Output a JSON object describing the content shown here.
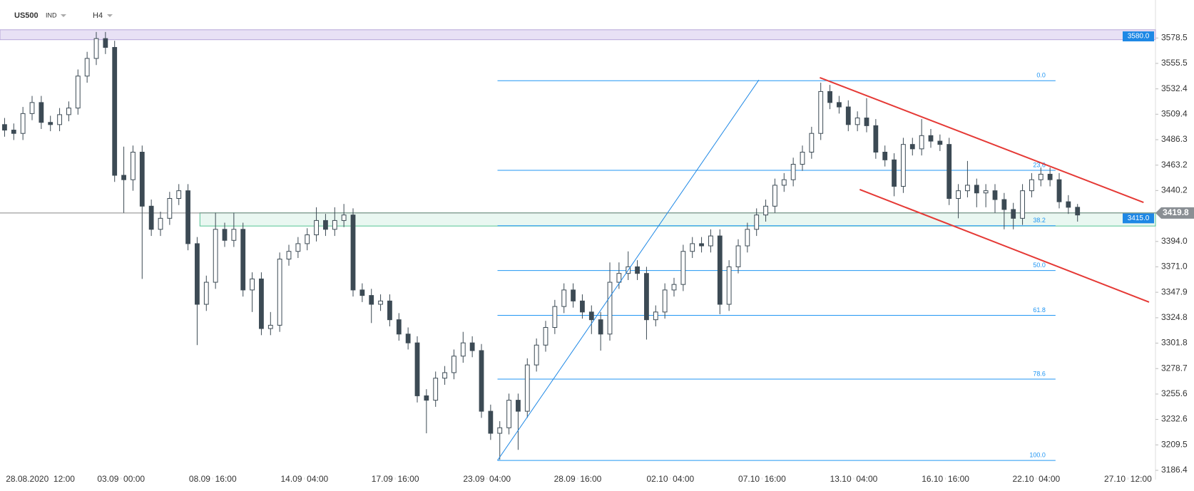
{
  "chart_data": {
    "type": "candlestick",
    "title": "US500",
    "instrument_class": "IND",
    "timeframe": "H4",
    "xlim": [
      -0.5,
      125.5
    ],
    "ylim": [
      3178,
      3613
    ],
    "xticks": [
      {
        "value": 3.9,
        "label": "28.08.2020  12:00"
      },
      {
        "value": 12.7,
        "label": "03.09  00:00"
      },
      {
        "value": 22.7,
        "label": "08.09  16:00"
      },
      {
        "value": 32.7,
        "label": "14.09  04:00"
      },
      {
        "value": 42.6,
        "label": "17.09  16:00"
      },
      {
        "value": 52.6,
        "label": "23.09  04:00"
      },
      {
        "value": 62.5,
        "label": "28.09  16:00"
      },
      {
        "value": 72.6,
        "label": "02.10  04:00"
      },
      {
        "value": 82.6,
        "label": "07.10  16:00"
      },
      {
        "value": 92.6,
        "label": "13.10  04:00"
      },
      {
        "value": 102.6,
        "label": "16.10  16:00"
      },
      {
        "value": 112.5,
        "label": "22.10  04:00"
      },
      {
        "value": 122.5,
        "label": "27.10  12:00"
      }
    ],
    "yticks": [
      3186.4,
      3209.5,
      3232.6,
      3255.6,
      3278.7,
      3301.8,
      3324.8,
      3347.9,
      {
        "value": 3371,
        "label": "3371.0"
      },
      {
        "value": 3394,
        "label": "3394.0"
      },
      3440.2,
      3463.2,
      3486.3,
      3509.4,
      3532.4,
      3555.5,
      3578.5
    ],
    "up_color": "#ffffff",
    "down_color": "#3c4a54",
    "wick_color": "#3c4a54",
    "open": [
      3500,
      3495,
      3492,
      3510,
      3520,
      3502,
      3500,
      3509,
      3515,
      3544,
      3560,
      3578,
      3570,
      3454,
      3450,
      3475,
      3426,
      3405,
      3415,
      3433,
      3440,
      3392,
      3337,
      3357,
      3405,
      3395,
      3405,
      3350,
      3360,
      3315,
      3318,
      3378,
      3385,
      3392,
      3400,
      3413,
      3405,
      3413,
      3418,
      3350,
      3345,
      3337,
      3340,
      3323,
      3310,
      3302,
      3254,
      3250,
      3270,
      3275,
      3290,
      3302,
      3295,
      3240,
      3220,
      3225,
      3250,
      3240,
      3282,
      3300,
      3316,
      3335,
      3350,
      3340,
      3330,
      3323,
      3310,
      3357,
      3365,
      3371,
      3365,
      3323,
      3330,
      3350,
      3355,
      3385,
      3392,
      3390,
      3399,
      3337,
      3371,
      3390,
      3405,
      3418,
      3426,
      3445,
      3450,
      3464,
      3475,
      3492,
      3530,
      3520,
      3516,
      3500,
      3506,
      3499,
      3475,
      3468,
      3444,
      3482,
      3478,
      3490,
      3485,
      3482,
      3433,
      3440,
      3445,
      3438,
      3440,
      3432,
      3423,
      3415,
      3440,
      3450,
      3455,
      3450,
      3430,
      3425
    ],
    "high": [
      3506,
      3501,
      3516,
      3526,
      3526,
      3508,
      3515,
      3521,
      3550,
      3566,
      3584,
      3584,
      3576,
      3480,
      3481,
      3481,
      3432,
      3421,
      3439,
      3446,
      3446,
      3398,
      3363,
      3420,
      3411,
      3420,
      3411,
      3366,
      3366,
      3330,
      3384,
      3391,
      3398,
      3406,
      3425,
      3419,
      3425,
      3428,
      3424,
      3356,
      3351,
      3346,
      3346,
      3329,
      3316,
      3308,
      3260,
      3276,
      3281,
      3296,
      3312,
      3308,
      3301,
      3246,
      3231,
      3256,
      3256,
      3288,
      3306,
      3322,
      3341,
      3356,
      3356,
      3346,
      3336,
      3330,
      3375,
      3375,
      3385,
      3377,
      3371,
      3336,
      3356,
      3361,
      3391,
      3398,
      3398,
      3405,
      3405,
      3377,
      3396,
      3411,
      3424,
      3432,
      3451,
      3456,
      3470,
      3481,
      3498,
      3538,
      3536,
      3526,
      3522,
      3512,
      3524,
      3505,
      3481,
      3474,
      3488,
      3488,
      3505,
      3496,
      3491,
      3488,
      3446,
      3467,
      3451,
      3446,
      3446,
      3438,
      3429,
      3446,
      3456,
      3461,
      3461,
      3456,
      3436,
      3428
    ],
    "low": [
      3489,
      3486,
      3486,
      3504,
      3496,
      3494,
      3494,
      3503,
      3509,
      3538,
      3554,
      3564,
      3448,
      3420,
      3440,
      3360,
      3399,
      3399,
      3409,
      3427,
      3386,
      3300,
      3331,
      3351,
      3389,
      3389,
      3344,
      3330,
      3309,
      3309,
      3312,
      3372,
      3379,
      3386,
      3394,
      3399,
      3399,
      3407,
      3344,
      3339,
      3320,
      3331,
      3317,
      3304,
      3296,
      3248,
      3220,
      3244,
      3264,
      3269,
      3284,
      3289,
      3234,
      3214,
      3196,
      3219,
      3205,
      3234,
      3276,
      3294,
      3310,
      3329,
      3334,
      3324,
      3310,
      3295,
      3304,
      3351,
      3359,
      3359,
      3305,
      3317,
      3324,
      3344,
      3349,
      3379,
      3384,
      3384,
      3328,
      3331,
      3365,
      3384,
      3399,
      3412,
      3420,
      3439,
      3444,
      3458,
      3469,
      3486,
      3514,
      3510,
      3494,
      3494,
      3493,
      3469,
      3462,
      3435,
      3438,
      3472,
      3472,
      3479,
      3476,
      3427,
      3415,
      3434,
      3425,
      3425,
      3420,
      3405,
      3405,
      3409,
      3434,
      3444,
      3444,
      3424,
      3419,
      3412
    ],
    "close": [
      3495,
      3492,
      3510,
      3520,
      3502,
      3500,
      3509,
      3515,
      3544,
      3560,
      3578,
      3570,
      3454,
      3450,
      3475,
      3426,
      3405,
      3415,
      3433,
      3440,
      3392,
      3337,
      3357,
      3405,
      3395,
      3405,
      3350,
      3360,
      3315,
      3318,
      3378,
      3385,
      3392,
      3400,
      3413,
      3405,
      3413,
      3418,
      3350,
      3345,
      3337,
      3340,
      3323,
      3310,
      3302,
      3254,
      3250,
      3270,
      3275,
      3290,
      3302,
      3295,
      3240,
      3220,
      3225,
      3250,
      3240,
      3282,
      3300,
      3316,
      3335,
      3350,
      3340,
      3330,
      3323,
      3310,
      3357,
      3365,
      3371,
      3365,
      3323,
      3330,
      3350,
      3355,
      3385,
      3392,
      3390,
      3399,
      3337,
      3371,
      3390,
      3405,
      3418,
      3426,
      3445,
      3450,
      3464,
      3475,
      3492,
      3530,
      3520,
      3516,
      3500,
      3506,
      3499,
      3475,
      3468,
      3444,
      3482,
      3478,
      3490,
      3485,
      3482,
      3433,
      3440,
      3445,
      3438,
      3440,
      3432,
      3423,
      3415,
      3440,
      3450,
      3455,
      3450,
      3430,
      3425,
      3418
    ],
    "zones": [
      {
        "range": [
          3577,
          3586
        ],
        "color": "#e4dcf3",
        "border": "#b6a6d8",
        "start": -0.5,
        "label": {
          "value": 3580,
          "label": "3580.0"
        }
      },
      {
        "range": [
          3408,
          3420
        ],
        "color": "#e5f6ee",
        "border": "#54c393",
        "start": 21.3,
        "label": {
          "value": 3415,
          "label": "3415.0"
        }
      }
    ],
    "current_price": 3419.8,
    "fib": {
      "low": 3195.4,
      "high": 3539.8,
      "x": [
        53.75,
        114.6
      ],
      "color": "#2196f3",
      "levels": [
        {
          "value": 0,
          "label": "0.0"
        },
        23.6,
        38.2,
        {
          "value": 50,
          "label": "50.0"
        },
        61.8,
        78.6,
        {
          "value": 100,
          "label": "100.0"
        }
      ]
    },
    "lines": [
      {
        "x": [
          53.75,
          82.25
        ],
        "y": [
          3195.4,
          3540.5
        ],
        "color": "#1e88e5"
      },
      {
        "x": [
          88.9,
          124.2
        ],
        "y": [
          3542.6,
          3429.4
        ],
        "color": "#e53935"
      },
      {
        "x": [
          93.25,
          124.8
        ],
        "y": [
          3441.1,
          3339.0
        ],
        "color": "#e53935"
      }
    ]
  }
}
